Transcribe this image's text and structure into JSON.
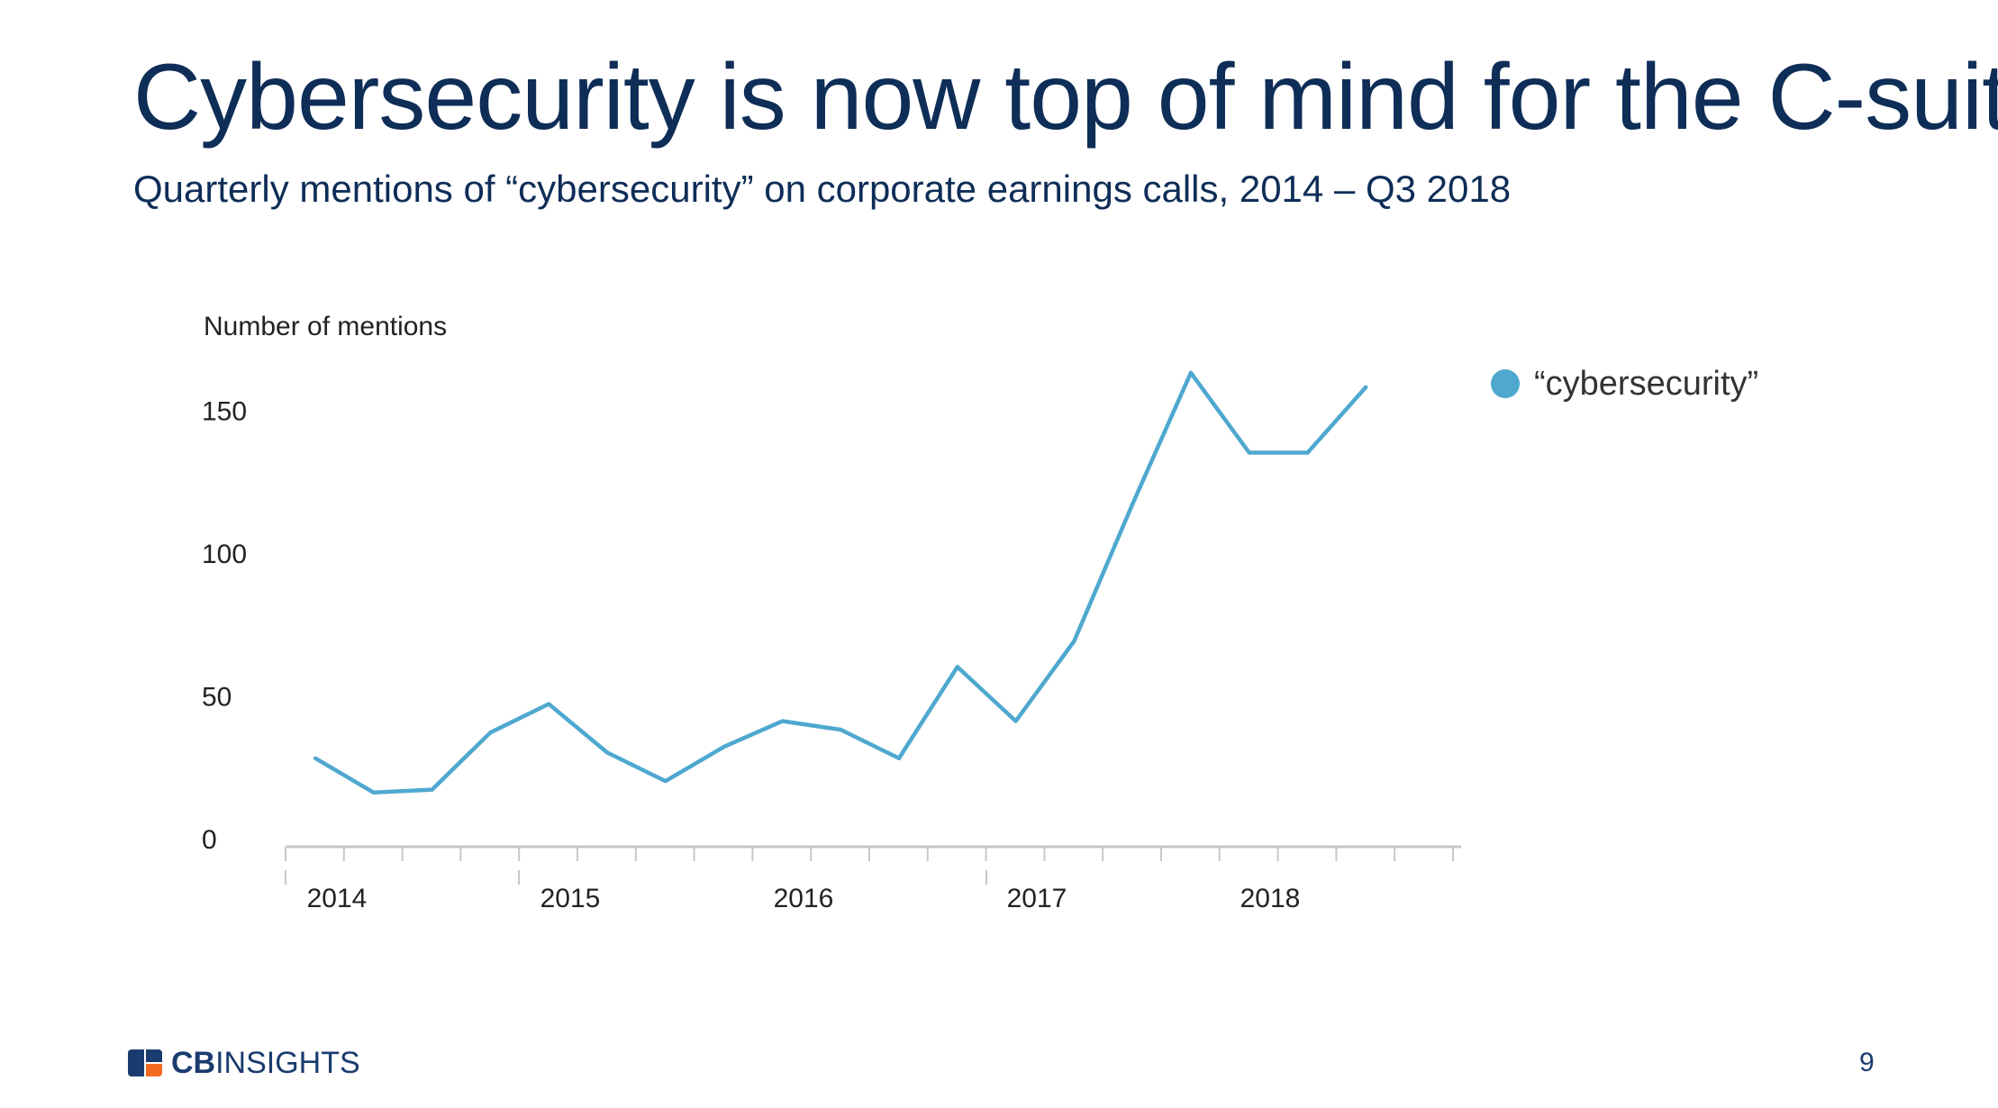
{
  "slide": {
    "title": "Cybersecurity is now top of mind for the C-suite",
    "subtitle": "Quarterly mentions of “cybersecurity” on corporate earnings calls, 2014 – Q3 2018",
    "page_number": "9",
    "logo": {
      "part1": "CB",
      "part2": "INSIGHTS"
    }
  },
  "colors": {
    "title": "#0e2d57",
    "line": "#4ea8cf",
    "axis": "#c8c8c8",
    "text": "#222222",
    "logo_navy": "#1a3b6e",
    "logo_orange": "#f26b21"
  },
  "chart_data": {
    "type": "line",
    "ylabel": "Number of mentions",
    "xlabel": "",
    "ylim": [
      0,
      170
    ],
    "yticks": [
      0,
      50,
      100,
      150
    ],
    "x_major_labels": [
      "2014",
      "2015",
      "2016",
      "2017",
      "2018"
    ],
    "legend_position": "top-right",
    "grid": false,
    "series": [
      {
        "name": "“cybersecurity”",
        "x": [
          "Q1 2014",
          "Q2 2014",
          "Q3 2014",
          "Q4 2014",
          "Q1 2015",
          "Q2 2015",
          "Q3 2015",
          "Q4 2015",
          "Q1 2016",
          "Q2 2016",
          "Q3 2016",
          "Q4 2016",
          "Q1 2017",
          "Q2 2017",
          "Q3 2017",
          "Q4 2017",
          "Q1 2018",
          "Q2 2018",
          "Q3 2018"
        ],
        "values": [
          31,
          19,
          20,
          40,
          50,
          33,
          23,
          35,
          44,
          41,
          31,
          63,
          44,
          72,
          120,
          166,
          138,
          138,
          161
        ]
      }
    ]
  }
}
